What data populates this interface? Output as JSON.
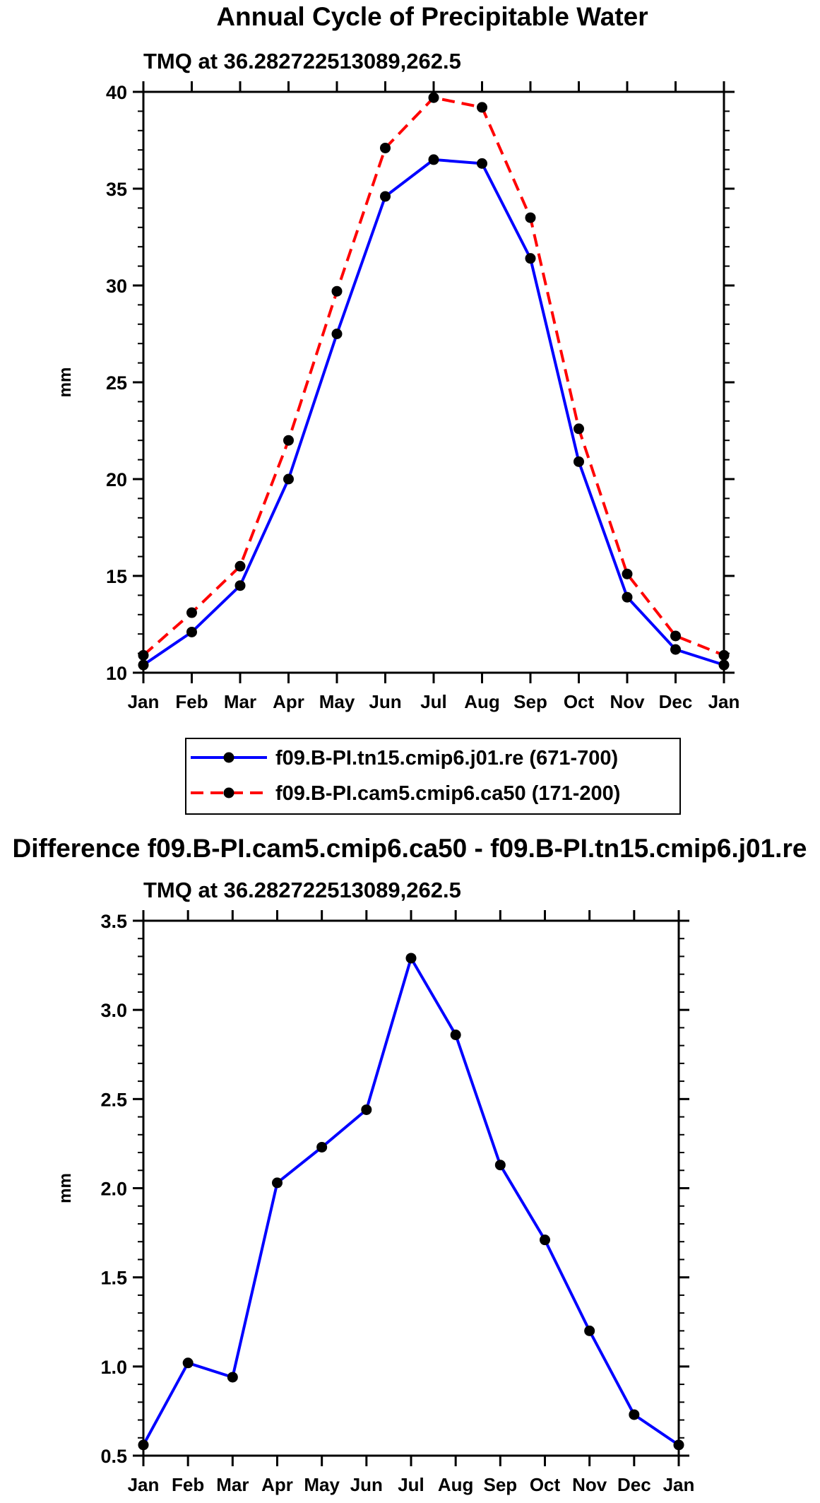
{
  "chart_data": [
    {
      "type": "line",
      "title": "Annual Cycle of Precipitable Water",
      "subtitle": "TMQ at 36.282722513089,262.5",
      "ylabel": "mm",
      "xlabel": "",
      "ylim": [
        10,
        40
      ],
      "yticks": [
        10,
        15,
        20,
        25,
        30,
        35,
        40
      ],
      "ytick_labels": [
        "10",
        "15",
        "20",
        "25",
        "30",
        "35",
        "40"
      ],
      "categories": [
        "Jan",
        "Feb",
        "Mar",
        "Apr",
        "May",
        "Jun",
        "Jul",
        "Aug",
        "Sep",
        "Oct",
        "Nov",
        "Dec",
        "Jan"
      ],
      "series": [
        {
          "name": "f09.B-PI.tn15.cmip6.j01.re (671-700)",
          "color": "#0000ff",
          "style": "solid",
          "values": [
            10.4,
            12.1,
            14.5,
            20.0,
            27.5,
            34.6,
            36.5,
            36.3,
            31.4,
            20.9,
            13.9,
            11.2,
            10.4
          ]
        },
        {
          "name": "f09.B-PI.cam5.cmip6.ca50 (171-200)",
          "color": "#ff0000",
          "style": "dashed",
          "values": [
            10.9,
            13.1,
            15.5,
            22.0,
            29.7,
            37.1,
            39.7,
            39.2,
            33.5,
            22.6,
            15.1,
            11.9,
            10.9
          ]
        }
      ],
      "legend": [
        "f09.B-PI.tn15.cmip6.j01.re (671-700)",
        "f09.B-PI.cam5.cmip6.ca50 (171-200)"
      ]
    },
    {
      "type": "line",
      "title": "Difference f09.B-PI.cam5.cmip6.ca50 - f09.B-PI.tn15.cmip6.j01.re",
      "subtitle": "TMQ at 36.282722513089,262.5",
      "ylabel": "mm",
      "xlabel": "",
      "ylim": [
        0.5,
        3.5
      ],
      "yticks": [
        0.5,
        1.0,
        1.5,
        2.0,
        2.5,
        3.0,
        3.5
      ],
      "ytick_labels": [
        "0.5",
        "1.0",
        "1.5",
        "2.0",
        "2.5",
        "3.0",
        "3.5"
      ],
      "categories": [
        "Jan",
        "Feb",
        "Mar",
        "Apr",
        "May",
        "Jun",
        "Jul",
        "Aug",
        "Sep",
        "Oct",
        "Nov",
        "Dec",
        "Jan"
      ],
      "series": [
        {
          "name": "difference",
          "color": "#0000ff",
          "style": "solid",
          "values": [
            0.56,
            1.02,
            0.94,
            2.03,
            2.23,
            2.44,
            3.29,
            2.86,
            2.13,
            1.71,
            1.2,
            0.73,
            0.56
          ]
        }
      ]
    }
  ]
}
